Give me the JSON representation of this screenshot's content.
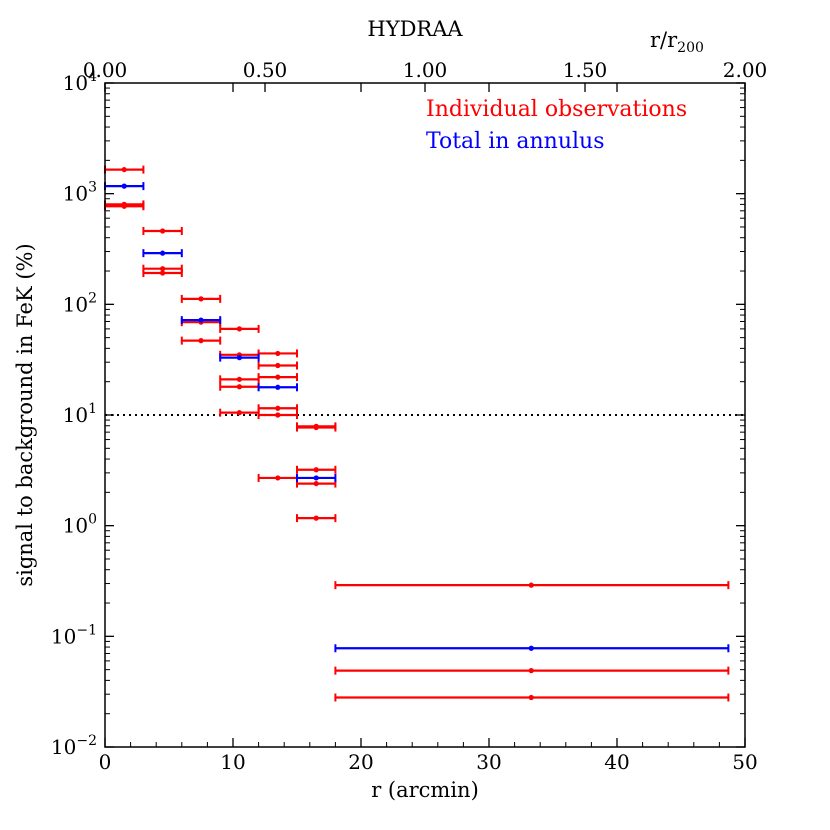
{
  "chart_data": {
    "type": "scatter",
    "title": "HYDRAA",
    "xlabel": "r (arcmin)",
    "ylabel": "signal to background in FeK (%)",
    "top_axis_label_main": "r/r",
    "top_axis_label_sub": "200",
    "xlim": [
      0,
      50
    ],
    "ylim_log10": [
      -2,
      4
    ],
    "x_ticks": [
      0,
      10,
      20,
      30,
      40,
      50
    ],
    "x_tick_labels": [
      "0",
      "10",
      "20",
      "30",
      "40",
      "50"
    ],
    "top_ticks": [
      0,
      0.5,
      1.0,
      1.5,
      2.0
    ],
    "top_tick_labels": [
      "0.00",
      "0.50",
      "1.00",
      "1.50",
      "2.00"
    ],
    "top_axis_max": 2.0,
    "y_ticks_exp": [
      -2,
      -1,
      0,
      1,
      2,
      3,
      4
    ],
    "y_tick_base": "10",
    "y_tick_exp_labels": [
      "−2",
      "−1",
      "0",
      "1",
      "2",
      "3",
      "4"
    ],
    "reference_line_y": 10,
    "colors": {
      "individual": "#ff0000",
      "total": "#0000ff"
    },
    "series": [
      {
        "name": "Individual observations",
        "color": "#ff0000",
        "points": [
          {
            "x": 1.5,
            "xlo": 0,
            "xhi": 3,
            "y": 1650
          },
          {
            "x": 1.5,
            "xlo": 0,
            "xhi": 3,
            "y": 800
          },
          {
            "x": 1.5,
            "xlo": 0,
            "xhi": 3,
            "y": 780
          },
          {
            "x": 1.5,
            "xlo": 0,
            "xhi": 3,
            "y": 770
          },
          {
            "x": 4.5,
            "xlo": 3,
            "xhi": 6,
            "y": 460
          },
          {
            "x": 4.5,
            "xlo": 3,
            "xhi": 6,
            "y": 210
          },
          {
            "x": 4.5,
            "xlo": 3,
            "xhi": 6,
            "y": 192
          },
          {
            "x": 7.5,
            "xlo": 6,
            "xhi": 9,
            "y": 112
          },
          {
            "x": 7.5,
            "xlo": 6,
            "xhi": 9,
            "y": 69
          },
          {
            "x": 7.5,
            "xlo": 6,
            "xhi": 9,
            "y": 47
          },
          {
            "x": 10.5,
            "xlo": 9,
            "xhi": 12,
            "y": 60
          },
          {
            "x": 10.5,
            "xlo": 9,
            "xhi": 12,
            "y": 35
          },
          {
            "x": 10.5,
            "xlo": 9,
            "xhi": 12,
            "y": 21
          },
          {
            "x": 10.5,
            "xlo": 9,
            "xhi": 12,
            "y": 18
          },
          {
            "x": 10.5,
            "xlo": 9,
            "xhi": 12,
            "y": 10.5
          },
          {
            "x": 13.5,
            "xlo": 12,
            "xhi": 15,
            "y": 36
          },
          {
            "x": 13.5,
            "xlo": 12,
            "xhi": 15,
            "y": 28
          },
          {
            "x": 13.5,
            "xlo": 12,
            "xhi": 15,
            "y": 22
          },
          {
            "x": 13.5,
            "xlo": 12,
            "xhi": 15,
            "y": 11.5
          },
          {
            "x": 13.5,
            "xlo": 12,
            "xhi": 15,
            "y": 10
          },
          {
            "x": 13.5,
            "xlo": 12,
            "xhi": 15,
            "y": 2.7
          },
          {
            "x": 16.5,
            "xlo": 15,
            "xhi": 18,
            "y": 7.9
          },
          {
            "x": 16.5,
            "xlo": 15,
            "xhi": 18,
            "y": 7.7
          },
          {
            "x": 16.5,
            "xlo": 15,
            "xhi": 18,
            "y": 3.2
          },
          {
            "x": 16.5,
            "xlo": 15,
            "xhi": 18,
            "y": 2.4
          },
          {
            "x": 16.5,
            "xlo": 15,
            "xhi": 18,
            "y": 1.17
          },
          {
            "x": 33.3,
            "xlo": 18,
            "xhi": 48.7,
            "y": 0.29
          },
          {
            "x": 33.3,
            "xlo": 18,
            "xhi": 48.7,
            "y": 0.049
          },
          {
            "x": 33.3,
            "xlo": 18,
            "xhi": 48.7,
            "y": 0.028
          }
        ]
      },
      {
        "name": "Total in annulus",
        "color": "#0000ff",
        "points": [
          {
            "x": 1.5,
            "xlo": 0,
            "xhi": 3,
            "y": 1170
          },
          {
            "x": 4.5,
            "xlo": 3,
            "xhi": 6,
            "y": 290
          },
          {
            "x": 7.5,
            "xlo": 6,
            "xhi": 9,
            "y": 72
          },
          {
            "x": 10.5,
            "xlo": 9,
            "xhi": 12,
            "y": 33
          },
          {
            "x": 13.5,
            "xlo": 12,
            "xhi": 15,
            "y": 17.8
          },
          {
            "x": 16.5,
            "xlo": 15,
            "xhi": 18,
            "y": 2.7
          },
          {
            "x": 33.3,
            "xlo": 18,
            "xhi": 48.7,
            "y": 0.078
          }
        ]
      }
    ],
    "legend": [
      "Individual observations",
      "Total in annulus"
    ],
    "legend_position": "top-right"
  }
}
